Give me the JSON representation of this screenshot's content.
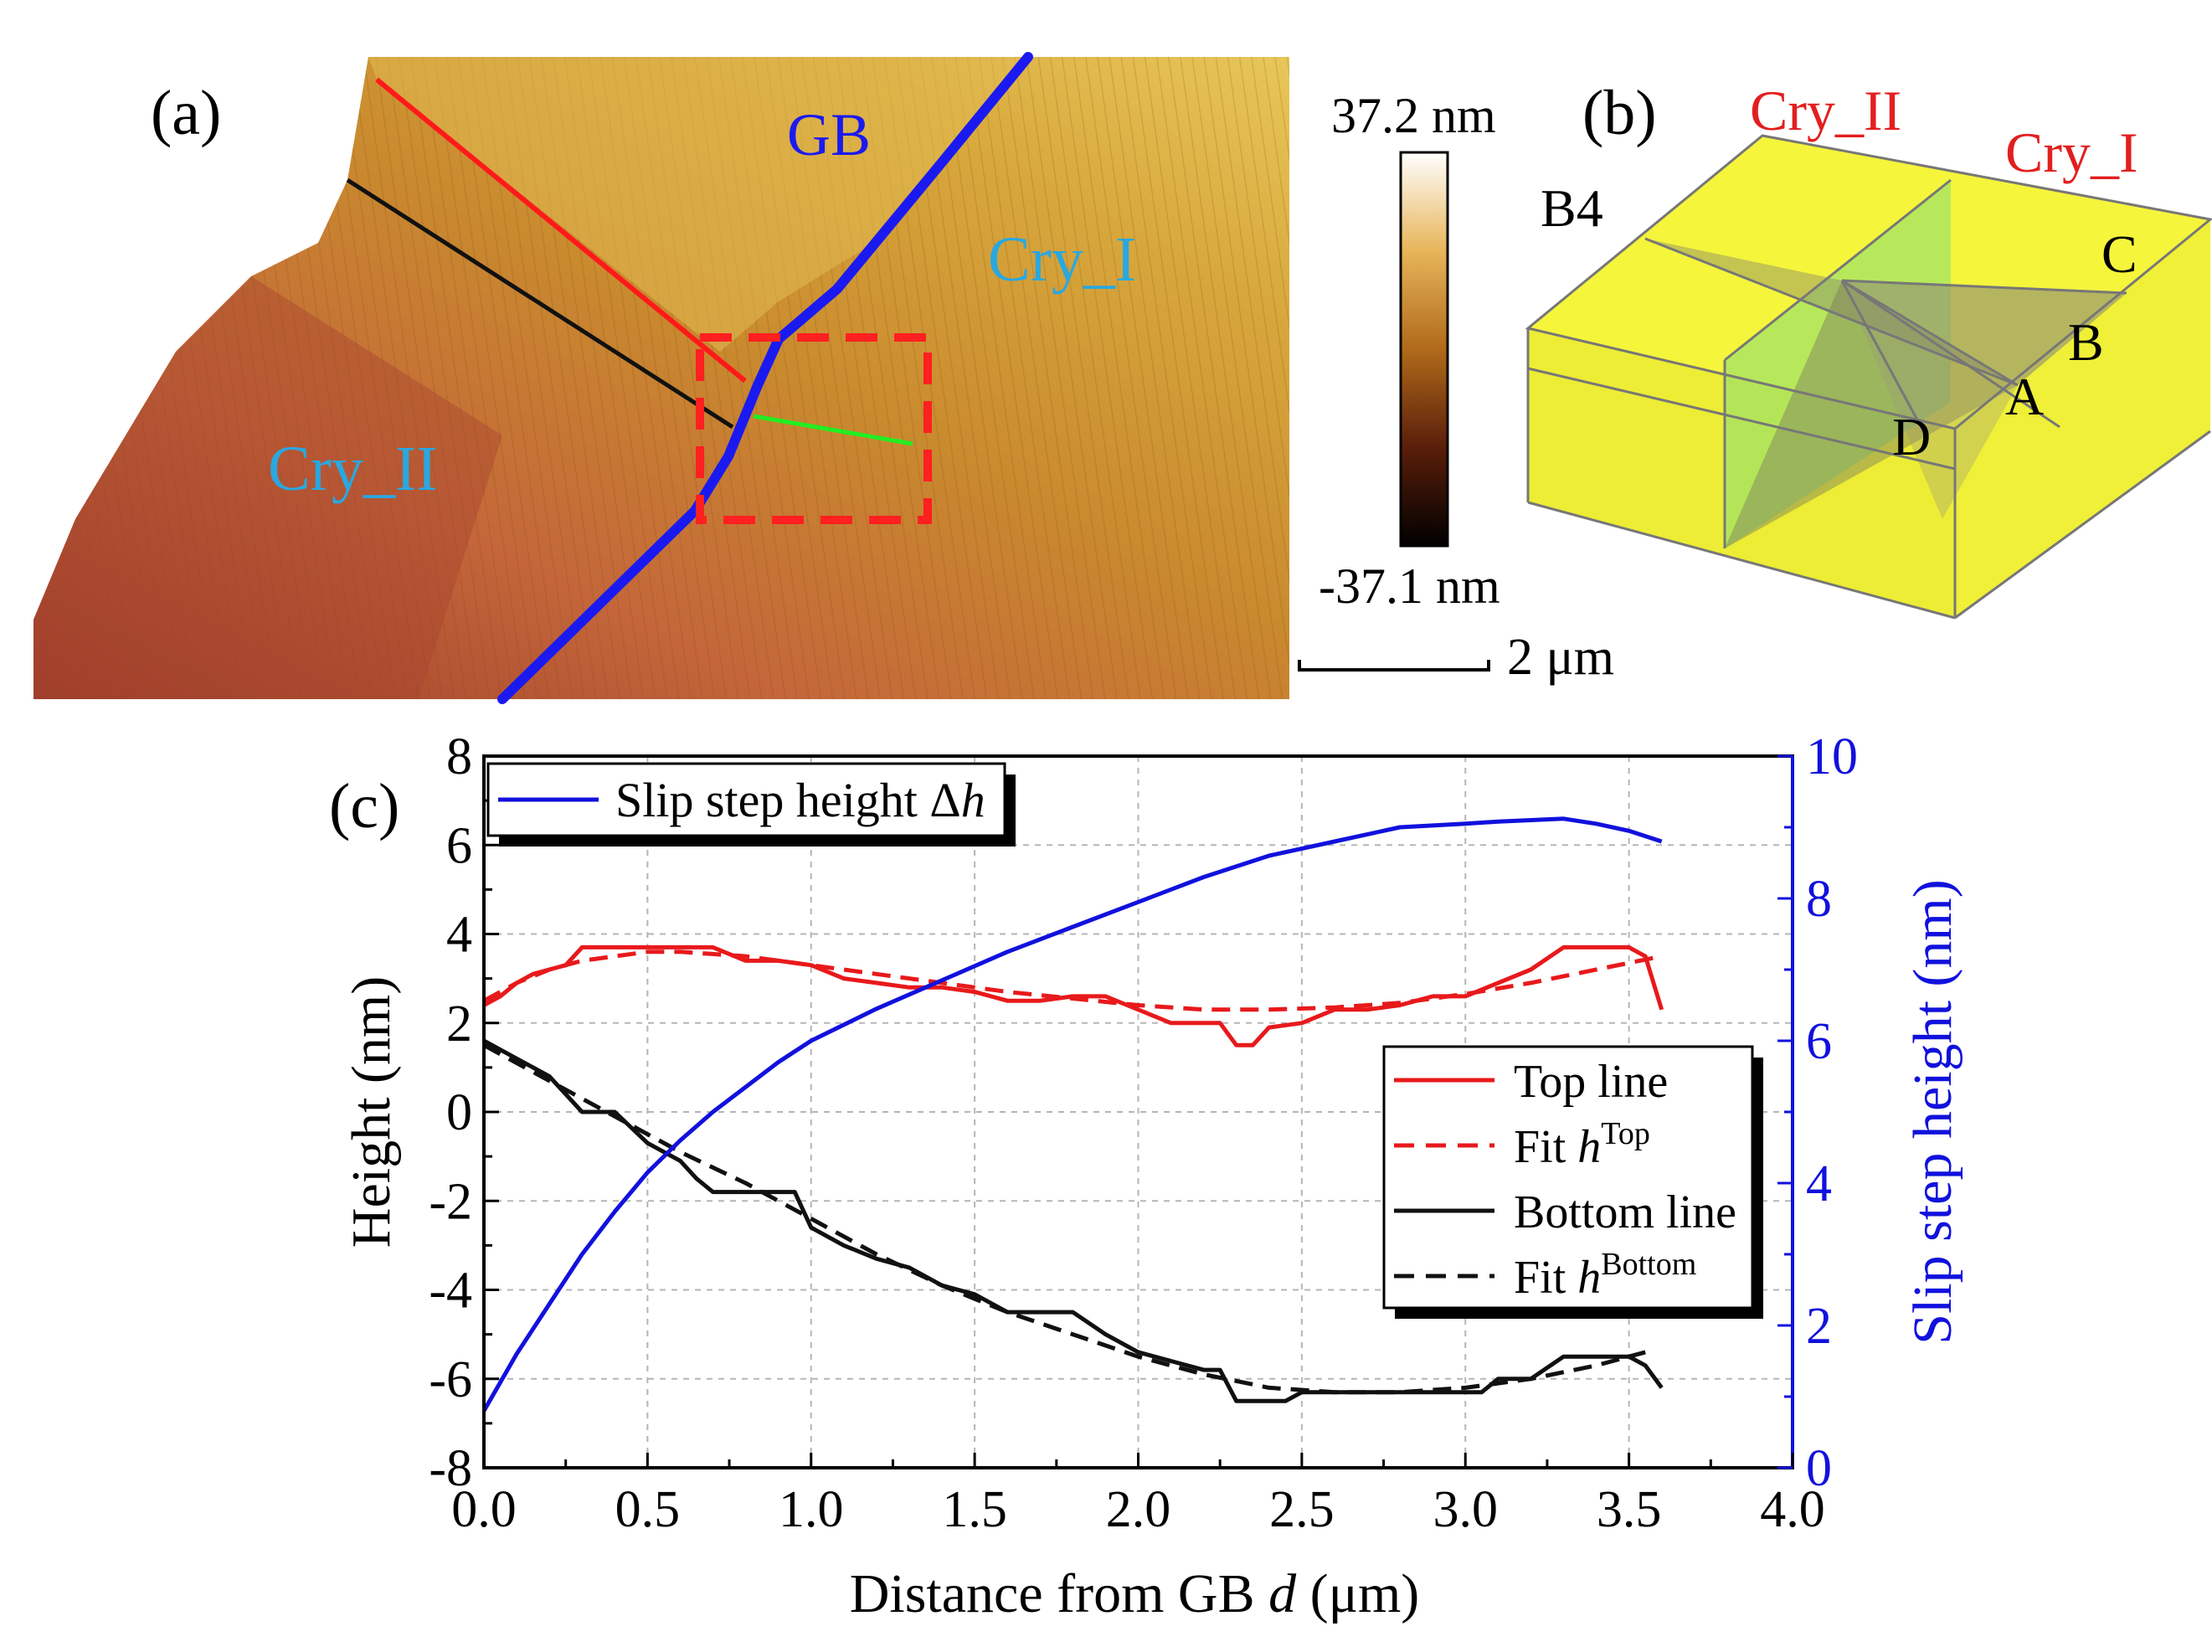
{
  "panel_a": {
    "label": "(a)",
    "gb_label": "GB",
    "cry_i_label": "Cry_I",
    "cry_ii_label": "Cry_II",
    "colorbar_max": "37.2 nm",
    "colorbar_min": "-37.1 nm",
    "scalebar_label": "2 μm"
  },
  "panel_b": {
    "label": "(b)",
    "cry_ii_label": "Cry_II",
    "cry_i_label": "Cry_I",
    "b4_label": "B4",
    "vertex_c": "C",
    "vertex_b": "B",
    "vertex_a": "A",
    "vertex_d": "D"
  },
  "panel_c_label": "(c)",
  "colors": {
    "top": "#e8191b",
    "bottom": "#111111",
    "step": "#1111dd",
    "gb": "#1a1af0",
    "cry_text": "#29a8e0",
    "cry_red": "#e21f1f",
    "crystal_yellow": "#f2f23a"
  },
  "chart_data": {
    "type": "line",
    "xlabel_prefix": "Distance from GB ",
    "xlabel_var": "d",
    "xlabel_suffix": " (μm)",
    "ylabel": "Height (nm)",
    "ylabel_right": "Slip step height (nm)",
    "xlim": [
      0.0,
      4.0
    ],
    "ylim": [
      -8,
      8
    ],
    "ylim_right": [
      0,
      10
    ],
    "x_ticks": [
      "0.0",
      "0.5",
      "1.0",
      "1.5",
      "2.0",
      "2.5",
      "3.0",
      "3.5",
      "4.0"
    ],
    "y_ticks": [
      "-8",
      "-6",
      "-4",
      "-2",
      "0",
      "2",
      "4",
      "6",
      "8"
    ],
    "y_right_ticks": [
      "0",
      "2",
      "4",
      "6",
      "8",
      "10"
    ],
    "legend_top": {
      "step_label": "Slip step height Δ",
      "step_var": "h"
    },
    "legend_right": {
      "top_line": "Top line",
      "fit_top_prefix": "Fit ",
      "fit_top_var": "h",
      "fit_top_sup": "Top",
      "bottom_line": "Bottom line",
      "fit_bottom_prefix": "Fit ",
      "fit_bottom_var": "h",
      "fit_bottom_sup": "Bottom"
    },
    "series": [
      {
        "name": "Top line",
        "axis": "left",
        "style": "solid",
        "x": [
          0.0,
          0.05,
          0.1,
          0.15,
          0.2,
          0.25,
          0.3,
          0.4,
          0.5,
          0.6,
          0.7,
          0.8,
          0.9,
          1.0,
          1.1,
          1.2,
          1.3,
          1.4,
          1.5,
          1.6,
          1.7,
          1.8,
          1.9,
          2.0,
          2.1,
          2.2,
          2.25,
          2.3,
          2.35,
          2.4,
          2.5,
          2.6,
          2.7,
          2.8,
          2.9,
          3.0,
          3.1,
          3.2,
          3.3,
          3.4,
          3.5,
          3.55,
          3.6
        ],
        "values": [
          2.4,
          2.6,
          2.9,
          3.1,
          3.2,
          3.3,
          3.7,
          3.7,
          3.7,
          3.7,
          3.7,
          3.4,
          3.4,
          3.3,
          3.0,
          2.9,
          2.8,
          2.8,
          2.7,
          2.5,
          2.5,
          2.6,
          2.6,
          2.3,
          2.0,
          2.0,
          2.0,
          1.5,
          1.5,
          1.9,
          2.0,
          2.3,
          2.3,
          2.4,
          2.6,
          2.6,
          2.9,
          3.2,
          3.7,
          3.7,
          3.7,
          3.5,
          2.3
        ]
      },
      {
        "name": "Fit h^Top",
        "axis": "left",
        "style": "dashed",
        "x": [
          0.0,
          0.1,
          0.2,
          0.3,
          0.4,
          0.5,
          0.6,
          0.7,
          0.8,
          0.9,
          1.0,
          1.2,
          1.4,
          1.6,
          1.8,
          2.0,
          2.2,
          2.4,
          2.6,
          2.8,
          3.0,
          3.2,
          3.4,
          3.6
        ],
        "values": [
          2.5,
          2.9,
          3.2,
          3.4,
          3.5,
          3.6,
          3.6,
          3.55,
          3.5,
          3.4,
          3.3,
          3.1,
          2.9,
          2.7,
          2.55,
          2.4,
          2.3,
          2.3,
          2.35,
          2.45,
          2.65,
          2.9,
          3.2,
          3.5
        ]
      },
      {
        "name": "Bottom line",
        "axis": "left",
        "style": "solid",
        "x": [
          0.0,
          0.1,
          0.2,
          0.25,
          0.3,
          0.4,
          0.5,
          0.6,
          0.65,
          0.7,
          0.8,
          0.9,
          0.95,
          1.0,
          1.1,
          1.2,
          1.3,
          1.4,
          1.5,
          1.6,
          1.7,
          1.8,
          1.9,
          2.0,
          2.1,
          2.2,
          2.25,
          2.3,
          2.4,
          2.45,
          2.5,
          2.6,
          2.8,
          3.0,
          3.05,
          3.1,
          3.2,
          3.3,
          3.4,
          3.5,
          3.55,
          3.6
        ],
        "values": [
          1.6,
          1.2,
          0.8,
          0.4,
          0.0,
          0.0,
          -0.7,
          -1.1,
          -1.5,
          -1.8,
          -1.8,
          -1.8,
          -1.8,
          -2.6,
          -3.0,
          -3.3,
          -3.5,
          -3.9,
          -4.1,
          -4.5,
          -4.5,
          -4.5,
          -5.0,
          -5.4,
          -5.6,
          -5.8,
          -5.8,
          -6.5,
          -6.5,
          -6.5,
          -6.3,
          -6.3,
          -6.3,
          -6.3,
          -6.3,
          -6.0,
          -6.0,
          -5.5,
          -5.5,
          -5.5,
          -5.7,
          -6.2
        ]
      },
      {
        "name": "Fit h^Bottom",
        "axis": "left",
        "style": "dashed",
        "x": [
          0.0,
          0.2,
          0.4,
          0.6,
          0.8,
          1.0,
          1.2,
          1.4,
          1.6,
          1.8,
          2.0,
          2.2,
          2.4,
          2.6,
          2.8,
          3.0,
          3.2,
          3.4,
          3.55
        ],
        "values": [
          1.5,
          0.7,
          -0.1,
          -0.9,
          -1.6,
          -2.4,
          -3.2,
          -3.9,
          -4.5,
          -5.0,
          -5.5,
          -5.9,
          -6.2,
          -6.3,
          -6.3,
          -6.2,
          -6.0,
          -5.7,
          -5.4
        ]
      },
      {
        "name": "Slip step height Δh",
        "axis": "right",
        "style": "solid",
        "x": [
          0.0,
          0.1,
          0.2,
          0.3,
          0.4,
          0.5,
          0.6,
          0.7,
          0.8,
          0.9,
          1.0,
          1.2,
          1.4,
          1.6,
          1.8,
          2.0,
          2.2,
          2.4,
          2.6,
          2.8,
          3.0,
          3.1,
          3.2,
          3.3,
          3.4,
          3.5,
          3.6
        ],
        "values": [
          0.8,
          1.6,
          2.3,
          3.0,
          3.6,
          4.15,
          4.6,
          5.0,
          5.35,
          5.7,
          6.0,
          6.45,
          6.85,
          7.25,
          7.6,
          7.95,
          8.3,
          8.6,
          8.8,
          9.0,
          9.05,
          9.08,
          9.1,
          9.12,
          9.05,
          8.95,
          8.8
        ]
      }
    ]
  }
}
